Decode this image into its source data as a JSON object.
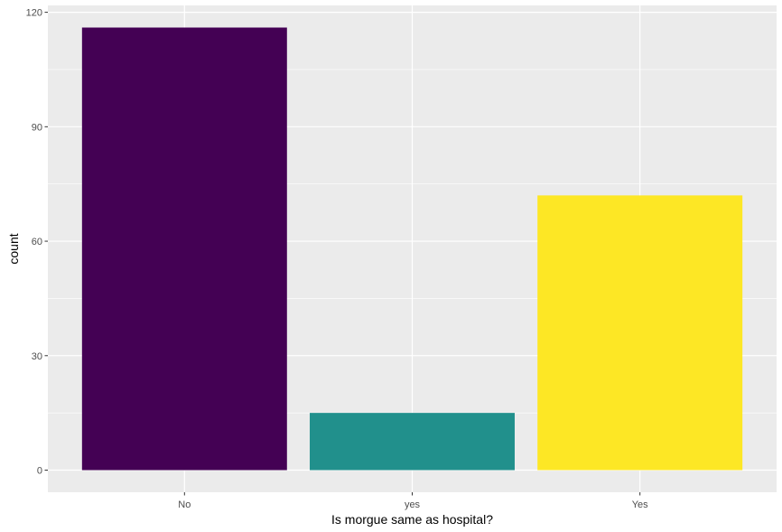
{
  "chart_data": {
    "type": "bar",
    "categories": [
      "No",
      "yes",
      "Yes"
    ],
    "values": [
      116,
      15,
      72
    ],
    "colors": [
      "#440154",
      "#21908C",
      "#FDE725"
    ],
    "title": "",
    "xlabel": "Is morgue same as hospital?",
    "ylabel": "count",
    "ylim": [
      0,
      120
    ],
    "yticks": [
      0,
      30,
      60,
      90,
      120
    ],
    "ytick_labels": [
      "0",
      "30",
      "60",
      "90",
      "120"
    ],
    "grid": true,
    "legend": "none",
    "panel_background": "#EBEBEB",
    "grid_color": "#FFFFFF"
  }
}
